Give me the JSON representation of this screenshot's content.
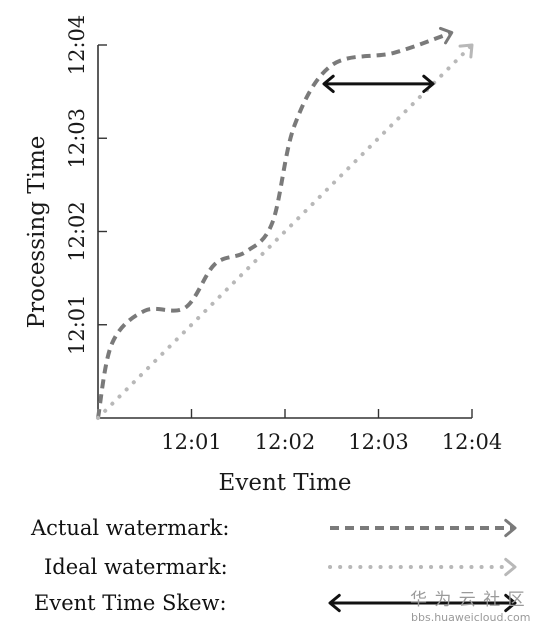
{
  "chart_data": {
    "type": "line",
    "title": "",
    "xlabel": "Event Time",
    "ylabel": "Processing Time",
    "x_ticks": [
      "12:01",
      "12:02",
      "12:03",
      "12:04"
    ],
    "y_ticks": [
      "12:01",
      "12:02",
      "12:03",
      "12:04"
    ],
    "xlim": [
      "12:00",
      "12:04"
    ],
    "ylim": [
      "12:00",
      "12:04"
    ],
    "grid": false,
    "legend_position": "bottom",
    "series": [
      {
        "name": "Actual watermark:",
        "style": "dashed",
        "color": "#7a7a7a",
        "points": [
          {
            "x": "12:00",
            "y": "12:00"
          },
          {
            "x": "12:00:09",
            "y": "12:00:48"
          },
          {
            "x": "12:00:30",
            "y": "12:01:09"
          },
          {
            "x": "12:00:56",
            "y": "12:01:11"
          },
          {
            "x": "12:01:15",
            "y": "12:01:39"
          },
          {
            "x": "12:01:35",
            "y": "12:01:47"
          },
          {
            "x": "12:01:52",
            "y": "12:02:06"
          },
          {
            "x": "12:02:06",
            "y": "12:03:08"
          },
          {
            "x": "12:02:30",
            "y": "12:03:47"
          },
          {
            "x": "12:03:10",
            "y": "12:03:55"
          },
          {
            "x": "12:03:47",
            "y": "12:04:08"
          }
        ]
      },
      {
        "name": "Ideal watermark:",
        "style": "dotted",
        "color": "#b8b8b8",
        "points": [
          {
            "x": "12:00",
            "y": "12:00"
          },
          {
            "x": "12:04",
            "y": "12:04"
          }
        ]
      }
    ],
    "annotations": [
      {
        "name": "Event Time Skew:",
        "type": "double-arrow",
        "color": "#111111",
        "x_from": "12:02:25",
        "x_to": "12:03:35",
        "y": "12:03:35"
      }
    ]
  },
  "legend": [
    {
      "label": "Actual watermark:",
      "style": "dashed",
      "color": "#7a7a7a"
    },
    {
      "label": "Ideal watermark:",
      "style": "dotted",
      "color": "#b8b8b8"
    },
    {
      "label": "Event Time Skew:",
      "style": "double-arrow",
      "color": "#111111"
    }
  ],
  "watermark": {
    "logo_text": "华 为 云 社 区",
    "url": "bbs.huaweicloud.com"
  }
}
